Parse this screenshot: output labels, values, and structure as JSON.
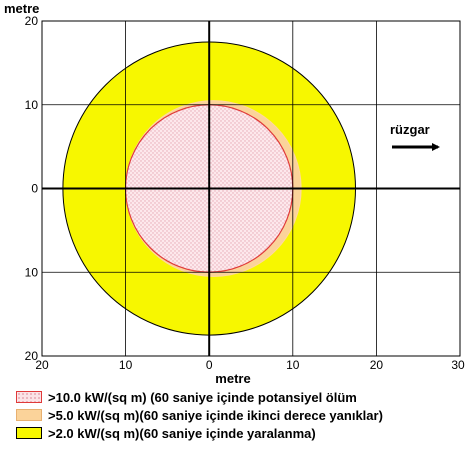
{
  "chart_data": {
    "type": "threat-zone",
    "x_axis": {
      "label": "metre",
      "range": [
        -20,
        30
      ],
      "tick_labels": [
        "20",
        "10",
        "0",
        "10",
        "20",
        "30"
      ]
    },
    "y_axis": {
      "label": "metre",
      "range": [
        -20,
        20
      ],
      "tick_labels": [
        "20",
        "10",
        "0",
        "10",
        "20"
      ]
    },
    "grid": true,
    "wind_label": "rüzgar",
    "zones": [
      {
        "threshold_kw_per_sq_m": 10.0,
        "radius_m": 10,
        "center_x_m": 0,
        "label": ">10.0 kW/(sq m) (60 saniye içinde potansiyel ölüm",
        "fill": "#fbe3e6",
        "edge": "#e03a3a",
        "pattern": "dotted"
      },
      {
        "threshold_kw_per_sq_m": 5.0,
        "radius_m": 10.5,
        "center_x_m": 0.5,
        "label": ">5.0 kW/(sq m)(60 saniye içinde ikinci derece yanıklar)",
        "fill": "#fbd39a",
        "edge": "#ffd8a0",
        "pattern": "solid"
      },
      {
        "threshold_kw_per_sq_m": 2.0,
        "radius_m": 17.5,
        "center_x_m": 0,
        "label": ">2.0 kW/(sq m)(60 saniye içinde yaralanma)",
        "fill": "#f7f700",
        "edge": "#000000",
        "pattern": "solid"
      }
    ]
  },
  "legend": {
    "items": [
      {
        "label": ">10.0 kW/(sq m) (60 saniye içinde potansiyel ölüm",
        "fill": "#fbe3e6",
        "edge": "#e03a3a"
      },
      {
        "label": ">5.0 kW/(sq m)(60 saniye içinde ikinci derece yanıklar)",
        "fill": "#fbd39a",
        "edge": "#e8b070"
      },
      {
        "label": ">2.0 kW/(sq m)(60 saniye içinde yaralanma)",
        "fill": "#f7f700",
        "edge": "#000000"
      }
    ]
  }
}
